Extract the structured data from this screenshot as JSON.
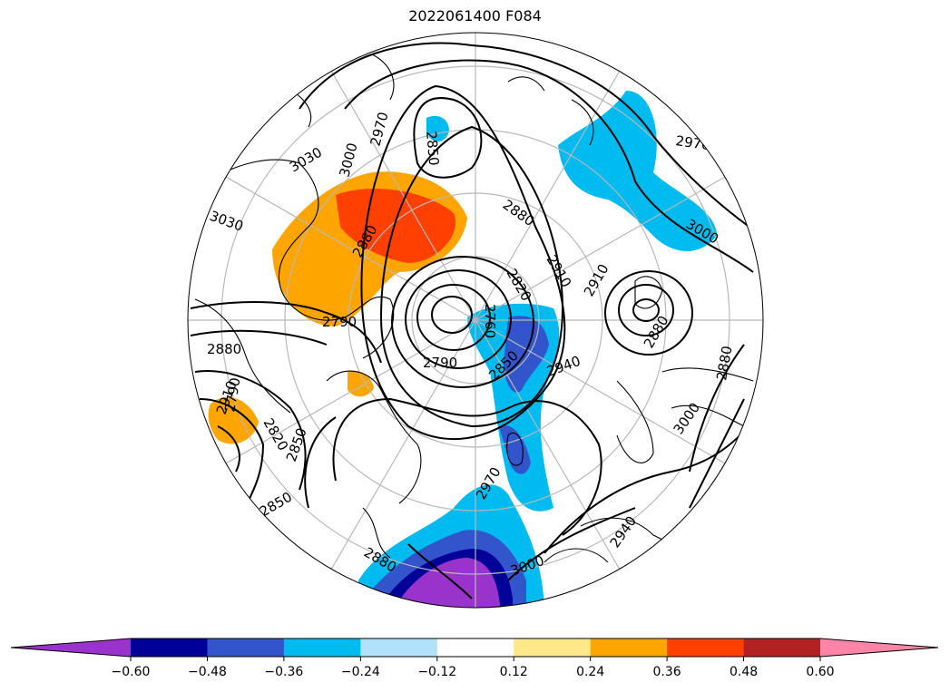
{
  "title": "2022061400 F084",
  "contour_labels": [
    "2970",
    "3000",
    "3030",
    "3030",
    "2850",
    "2880",
    "2910",
    "2820",
    "2760",
    "2790",
    "2850",
    "2940",
    "2970",
    "3000",
    "2910",
    "2880",
    "2880",
    "2970",
    "3000",
    "2940",
    "3000",
    "2880",
    "2910",
    "2850",
    "2820",
    "2880",
    "2790",
    "2850",
    "2880",
    "2790"
  ],
  "colorbar": {
    "colors": [
      "#9933cc",
      "#000099",
      "#3355cc",
      "#00bbf0",
      "#b0e0fa",
      "#ffffff",
      "#ffe88a",
      "#ffa500",
      "#ff4000",
      "#b22222",
      "#ff85a8"
    ],
    "tick_labels": [
      "−0.60",
      "−0.48",
      "−0.36",
      "−0.24",
      "−0.12",
      "0.12",
      "0.24",
      "0.36",
      "0.48",
      "0.60"
    ],
    "extend": "both"
  }
}
